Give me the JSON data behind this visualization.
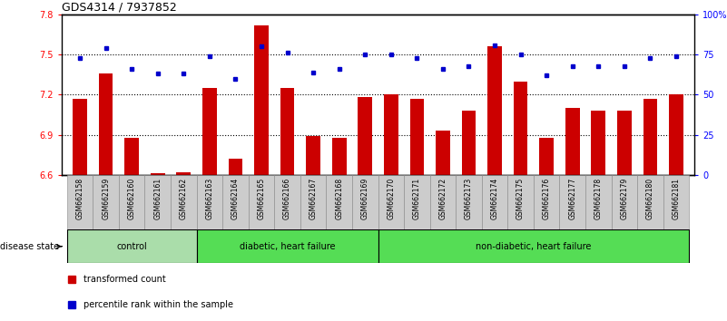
{
  "title": "GDS4314 / 7937852",
  "samples": [
    "GSM662158",
    "GSM662159",
    "GSM662160",
    "GSM662161",
    "GSM662162",
    "GSM662163",
    "GSM662164",
    "GSM662165",
    "GSM662166",
    "GSM662167",
    "GSM662168",
    "GSM662169",
    "GSM662170",
    "GSM662171",
    "GSM662172",
    "GSM662173",
    "GSM662174",
    "GSM662175",
    "GSM662176",
    "GSM662177",
    "GSM662178",
    "GSM662179",
    "GSM662180",
    "GSM662181"
  ],
  "red_values": [
    7.17,
    7.36,
    6.88,
    6.61,
    6.62,
    7.25,
    6.72,
    7.72,
    7.25,
    6.89,
    6.88,
    7.18,
    7.2,
    7.17,
    6.93,
    7.08,
    7.56,
    7.3,
    6.88,
    7.1,
    7.08,
    7.08,
    7.17,
    7.2
  ],
  "blue_values": [
    73,
    79,
    66,
    63,
    63,
    74,
    60,
    80,
    76,
    64,
    66,
    75,
    75,
    73,
    66,
    68,
    81,
    75,
    62,
    68,
    68,
    68,
    73,
    74
  ],
  "ylim_left": [
    6.6,
    7.8
  ],
  "ylim_right": [
    0,
    100
  ],
  "yticks_left": [
    6.6,
    6.9,
    7.2,
    7.5,
    7.8
  ],
  "ytick_labels_left": [
    "6.6",
    "6.9",
    "7.2",
    "7.5",
    "7.8"
  ],
  "yticks_right": [
    0,
    25,
    50,
    75,
    100
  ],
  "ytick_labels_right": [
    "0",
    "25",
    "50",
    "75",
    "100%"
  ],
  "hlines": [
    6.9,
    7.2,
    7.5
  ],
  "bar_color": "#CC0000",
  "dot_color": "#0000CC",
  "groups": [
    {
      "label": "control",
      "start": 0,
      "end": 4,
      "color": "#AADDAA"
    },
    {
      "label": "diabetic, heart failure",
      "start": 5,
      "end": 11,
      "color": "#55DD55"
    },
    {
      "label": "non-diabetic, heart failure",
      "start": 12,
      "end": 23,
      "color": "#55DD55"
    }
  ],
  "disease_state_label": "disease state",
  "legend_items": [
    {
      "color": "#CC0000",
      "label": "transformed count"
    },
    {
      "color": "#0000CC",
      "label": "percentile rank within the sample"
    }
  ],
  "title_fontsize": 9,
  "tick_fontsize": 7,
  "label_fontsize": 6,
  "group_fontsize": 7,
  "legend_fontsize": 7
}
